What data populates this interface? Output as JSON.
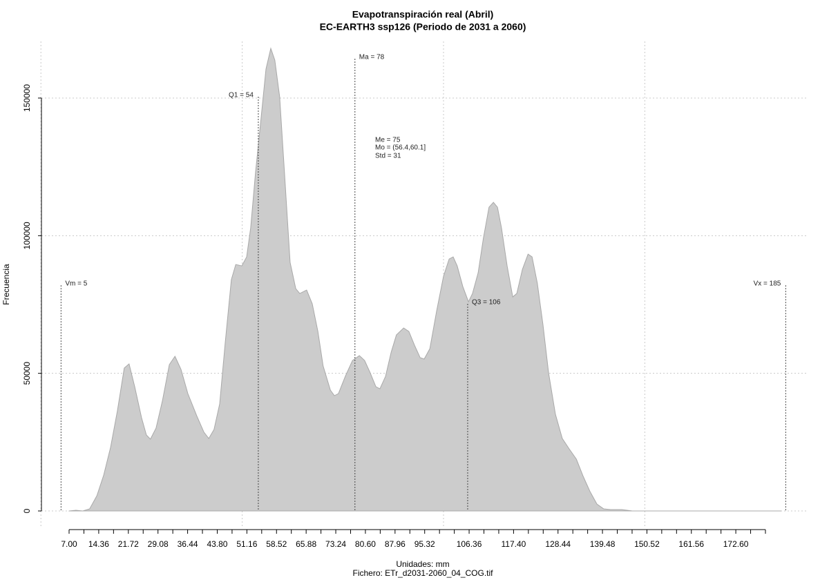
{
  "chart_data": {
    "type": "area",
    "title": "Evapotranspiración real (Abril)",
    "subtitle": "EC-EARTH3 ssp126 (Periodo de 2031 a 2060)",
    "xlabel": "Unidades: mm",
    "caption": "Fichero: ETr_d2031-2060_04_COG.tif",
    "ylabel": "Frecuencia",
    "color": "#cccccc",
    "edge_color": "#a8a8a8",
    "grid": true,
    "xlim": [
      0.135,
      190.6
    ],
    "ylim": [
      -6270,
      170570
    ],
    "yticks": [
      0,
      50000,
      100000,
      150000
    ],
    "xgrid": [
      0,
      50,
      100,
      150
    ],
    "xticks": [
      {
        "value": 7,
        "label": "7.00"
      },
      {
        "value": 14.36,
        "label": "14.36"
      },
      {
        "value": 21.72,
        "label": "21.72"
      },
      {
        "value": 29.08,
        "label": "29.08"
      },
      {
        "value": 36.44,
        "label": "36.44"
      },
      {
        "value": 43.8,
        "label": "43.80"
      },
      {
        "value": 51.16,
        "label": "51.16"
      },
      {
        "value": 58.52,
        "label": "58.52"
      },
      {
        "value": 65.88,
        "label": "65.88"
      },
      {
        "value": 73.24,
        "label": "73.24"
      },
      {
        "value": 80.6,
        "label": "80.60"
      },
      {
        "value": 87.96,
        "label": "87.96"
      },
      {
        "value": 95.32,
        "label": "95.32"
      },
      {
        "value": 106.36,
        "label": "106.36"
      },
      {
        "value": 117.4,
        "label": "117.40"
      },
      {
        "value": 128.44,
        "label": "128.44"
      },
      {
        "value": 139.48,
        "label": "139.48"
      },
      {
        "value": 150.52,
        "label": "150.52"
      },
      {
        "value": 161.56,
        "label": "161.56"
      },
      {
        "value": 172.6,
        "label": "172.60"
      }
    ],
    "xtick_marks": [
      7,
      10.68,
      14.36,
      18.04,
      21.72,
      25.4,
      29.08,
      32.76,
      36.44,
      40.12,
      43.8,
      47.48,
      51.16,
      54.84,
      58.52,
      62.2,
      65.88,
      69.56,
      73.24,
      76.92,
      80.6,
      84.28,
      87.96,
      91.64,
      95.32,
      99,
      102.68,
      106.36,
      110.04,
      113.72,
      117.4,
      121.08,
      124.76,
      128.44,
      132.12,
      135.8,
      139.48,
      143.16,
      146.84,
      150.52,
      154.2,
      157.88,
      161.56,
      165.24,
      168.92,
      172.6,
      176.28,
      179.96
    ],
    "x": [
      7.0,
      8.7,
      10.4,
      12.1,
      13.9,
      15.6,
      17.3,
      19.0,
      20.7,
      21.9,
      23.3,
      25.0,
      26.2,
      27.2,
      28.6,
      30.2,
      31.9,
      33.3,
      34.8,
      36.5,
      38.7,
      40.5,
      41.7,
      43.0,
      44.4,
      45.8,
      47.3,
      48.4,
      49.9,
      51.1,
      52.1,
      53.3,
      54.7,
      55.9,
      57.1,
      58.1,
      59.3,
      60.5,
      61.9,
      63.3,
      64.3,
      66.0,
      67.4,
      68.8,
      70.1,
      71.9,
      72.9,
      73.9,
      75.6,
      77.4,
      79.1,
      80.4,
      81.8,
      83.2,
      84.2,
      85.6,
      87.0,
      88.3,
      90.1,
      91.4,
      92.8,
      94.2,
      95.2,
      96.6,
      98.3,
      100.0,
      101.4,
      102.4,
      103.4,
      104.8,
      106.2,
      107.2,
      108.6,
      109.9,
      111.3,
      112.4,
      113.4,
      114.4,
      115.8,
      117.2,
      118.2,
      119.6,
      121.0,
      122.0,
      123.3,
      124.7,
      126.1,
      127.8,
      129.5,
      131.2,
      133.0,
      134.7,
      136.4,
      138.1,
      139.8,
      141.5,
      144.3,
      146.9,
      149.4,
      183.8
    ],
    "values": [
      0,
      250,
      0,
      750,
      5520,
      13040,
      23070,
      36370,
      51920,
      53420,
      45140,
      33860,
      27590,
      26080,
      30100,
      40130,
      53170,
      56180,
      51410,
      42640,
      34610,
      28590,
      26330,
      29600,
      38870,
      61450,
      84020,
      89540,
      89030,
      92290,
      102830,
      122890,
      142960,
      160510,
      168040,
      163770,
      150480,
      122890,
      90290,
      80760,
      79000,
      80260,
      75240,
      65210,
      52670,
      43890,
      41880,
      42640,
      48910,
      54670,
      56430,
      54670,
      50160,
      45140,
      44390,
      48910,
      57680,
      63950,
      66460,
      65210,
      60190,
      55680,
      55180,
      58940,
      72730,
      85270,
      91540,
      92290,
      89030,
      81510,
      75990,
      79000,
      86530,
      99070,
      110350,
      112110,
      110350,
      102830,
      89030,
      77750,
      79000,
      87780,
      93300,
      92290,
      82760,
      67720,
      50160,
      35110,
      26330,
      22570,
      18810,
      12540,
      7020,
      2510,
      750,
      500,
      500,
      0,
      0,
      0
    ],
    "markers": [
      {
        "label": "Vm = 5",
        "x": 5,
        "top": 82000
      },
      {
        "label": "Q1 = 54",
        "x": 54,
        "top": 150500
      },
      {
        "label": "Ma = 78",
        "x": 78,
        "top": 164300
      },
      {
        "label": "Q3 = 106",
        "x": 106,
        "top": 75250
      },
      {
        "label": "Vx = 185",
        "x": 185,
        "top": 82000
      }
    ],
    "annotations": [
      "Me = 75",
      "Mo = (56.4,60.1]",
      "Std = 31"
    ]
  }
}
